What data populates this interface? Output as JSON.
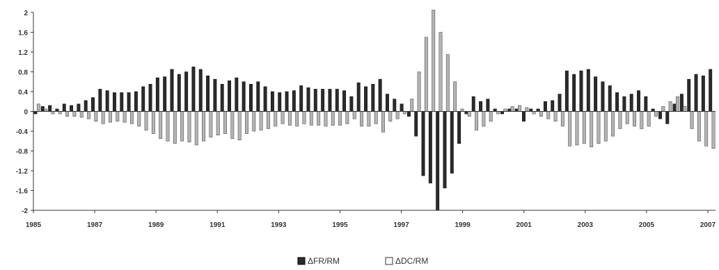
{
  "chart_data": {
    "type": "bar",
    "title": "",
    "xlabel": "",
    "ylabel": "",
    "ylim": [
      -2,
      2
    ],
    "yticks": [
      "2",
      "1.6",
      "1.2",
      "0.8",
      "0.4",
      "0",
      "-0.4",
      "-0.8",
      "-1.2",
      "-1.6",
      "-2"
    ],
    "ytick_values": [
      2,
      1.6,
      1.2,
      0.8,
      0.4,
      0,
      -0.4,
      -0.8,
      -1.2,
      -1.6,
      -2
    ],
    "xticks": [
      "1985",
      "1987",
      "1989",
      "1991",
      "1993",
      "1995",
      "1997",
      "1999",
      "2001",
      "2003",
      "2005",
      "2007"
    ],
    "xtick_values": [
      1985,
      1987,
      1989,
      1991,
      1993,
      1995,
      1997,
      1999,
      2001,
      2003,
      2005,
      2007
    ],
    "x_start": 1985.0,
    "x_step": 0.25,
    "grid": false,
    "legend_position": "bottom",
    "series": [
      {
        "name": "ΔFR/RM",
        "color": "#2b2b2b",
        "values": [
          -0.05,
          0.1,
          0.12,
          0.05,
          0.15,
          0.12,
          0.15,
          0.22,
          0.28,
          0.45,
          0.42,
          0.38,
          0.38,
          0.38,
          0.4,
          0.5,
          0.55,
          0.68,
          0.7,
          0.85,
          0.75,
          0.8,
          0.9,
          0.85,
          0.72,
          0.65,
          0.55,
          0.62,
          0.68,
          0.6,
          0.55,
          0.6,
          0.5,
          0.4,
          0.38,
          0.4,
          0.42,
          0.52,
          0.48,
          0.45,
          0.45,
          0.45,
          0.45,
          0.42,
          0.3,
          0.58,
          0.5,
          0.55,
          0.65,
          0.35,
          0.25,
          0.15,
          -0.1,
          -0.5,
          -1.3,
          -1.45,
          -2.0,
          -1.55,
          -1.25,
          -0.65,
          -0.05,
          0.3,
          0.2,
          0.25,
          0.05,
          -0.05,
          0.05,
          0.05,
          -0.2,
          0.05,
          0.05,
          0.2,
          0.22,
          0.35,
          0.82,
          0.75,
          0.82,
          0.85,
          0.7,
          0.6,
          0.52,
          0.38,
          0.3,
          0.35,
          0.42,
          0.3,
          0.05,
          -0.15,
          -0.25,
          0.15,
          0.35,
          0.65,
          0.75,
          0.72,
          0.85
        ]
      },
      {
        "name": "ΔDC/RM",
        "color": "#b4b4b4",
        "values": [
          0.15,
          0.05,
          -0.05,
          -0.05,
          -0.1,
          -0.1,
          -0.12,
          -0.15,
          -0.2,
          -0.25,
          -0.22,
          -0.2,
          -0.22,
          -0.25,
          -0.3,
          -0.38,
          -0.45,
          -0.55,
          -0.6,
          -0.65,
          -0.6,
          -0.62,
          -0.68,
          -0.6,
          -0.52,
          -0.48,
          -0.45,
          -0.55,
          -0.58,
          -0.45,
          -0.4,
          -0.38,
          -0.35,
          -0.3,
          -0.25,
          -0.28,
          -0.3,
          -0.25,
          -0.28,
          -0.28,
          -0.3,
          -0.28,
          -0.28,
          -0.25,
          -0.15,
          -0.3,
          -0.3,
          -0.25,
          -0.42,
          -0.2,
          -0.15,
          -0.05,
          0.25,
          0.8,
          1.5,
          2.05,
          1.6,
          1.15,
          0.6,
          0.05,
          -0.1,
          -0.38,
          -0.3,
          -0.2,
          -0.05,
          0.05,
          0.1,
          0.12,
          0.08,
          -0.05,
          -0.1,
          -0.15,
          -0.2,
          -0.3,
          -0.7,
          -0.68,
          -0.65,
          -0.72,
          -0.65,
          -0.6,
          -0.5,
          -0.35,
          -0.25,
          -0.3,
          -0.35,
          -0.3,
          -0.1,
          0.1,
          0.2,
          0.3,
          0.1,
          -0.35,
          -0.6,
          -0.7,
          -0.75
        ]
      }
    ]
  }
}
